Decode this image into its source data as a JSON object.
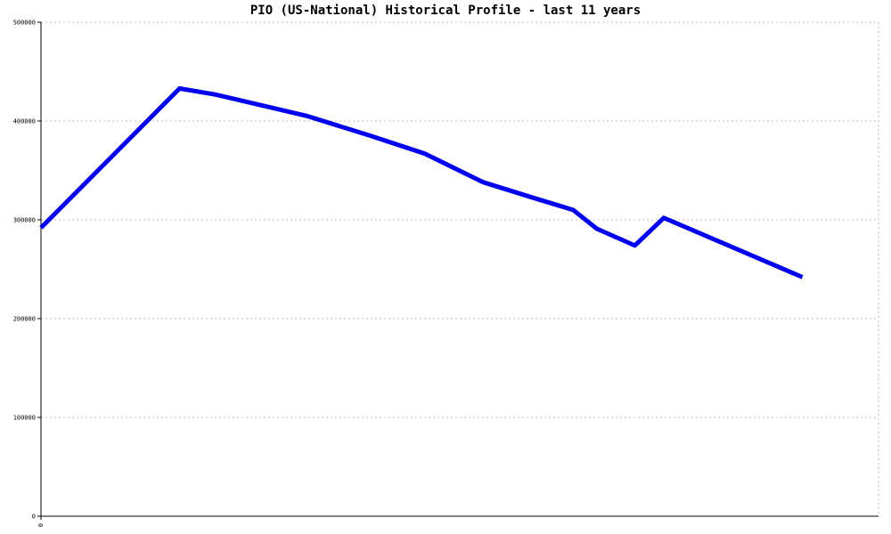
{
  "chart_data": {
    "type": "line",
    "title": "PIO (US-National) Historical Profile - last 11 years",
    "xlabel": "",
    "ylabel": "",
    "x_tick_labels": [
      "0"
    ],
    "y_ticks": [
      0,
      100000,
      200000,
      300000,
      400000,
      500000
    ],
    "y_tick_labels": [
      "0",
      "100000",
      "200000",
      "300000",
      "400000",
      "500000"
    ],
    "ylim": [
      0,
      500000
    ],
    "xlim": [
      0,
      11
    ],
    "grid": true,
    "series": [
      {
        "color": "#0000ee",
        "x": [
          0,
          1.82,
          2.28,
          3.5,
          4.33,
          5.04,
          5.81,
          6.52,
          6.99,
          7.3,
          7.8,
          8.18,
          10.0
        ],
        "values": [
          292000,
          433000,
          427000,
          405000,
          385000,
          367000,
          338000,
          321000,
          310000,
          291000,
          274000,
          302000,
          242000
        ]
      }
    ]
  }
}
